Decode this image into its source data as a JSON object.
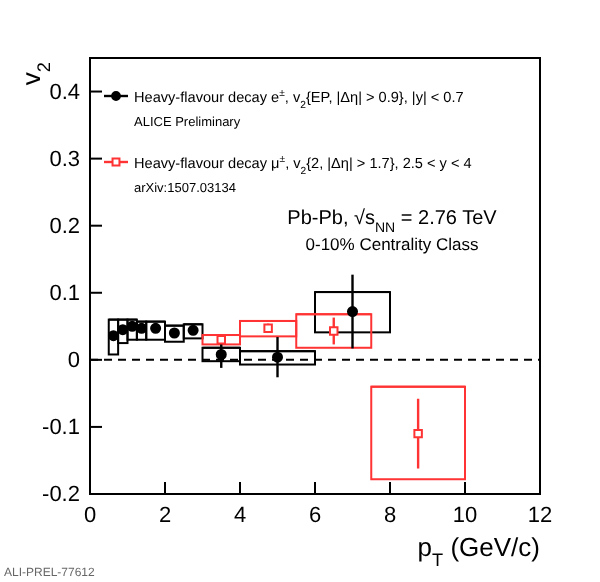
{
  "chart_data": {
    "type": "scatter",
    "ylabel": "v$_{2}$",
    "xlabel": "p$_{T}$ (GeV/c)",
    "xlim": [
      0,
      12
    ],
    "xticks": [
      0,
      2,
      4,
      6,
      8,
      10,
      12
    ],
    "ylim": [
      -0.2,
      0.45
    ],
    "yticks": [
      -0.2,
      -0.1,
      0,
      0.1,
      0.2,
      0.3,
      0.4
    ],
    "legend": "top left",
    "grid": false,
    "marker": "circle",
    "ref_lines": [
      {
        "axis": "y",
        "value": 0,
        "line_style": "dashed",
        "color": "#000000"
      }
    ],
    "annotations": [
      "ALICE Preliminary",
      "arXiv:1507.03134",
      "Pb-Pb, √s$_{NN}$ = 2.76 TeV",
      "0-10% Centrality Class",
      "ALI-PREL-77612"
    ],
    "series": [
      {
        "type": "bar",
        "color": "#000000",
        "x": [
          0.625,
          0.875,
          1.125,
          1.375,
          1.75,
          2.25,
          2.75,
          3.5,
          5,
          7
        ],
        "base": [
          0.008,
          0.025,
          0.03,
          0.03,
          0.03,
          0.027,
          0.032,
          -0.002,
          -0.007,
          0.041
        ],
        "values": [
          0.052,
          0.035,
          0.03,
          0.027,
          0.027,
          0.024,
          0.021,
          0.02,
          0.02,
          0.06
        ],
        "xerrors": [
          0.125,
          0.125,
          0.125,
          0.125,
          0.25,
          0.25,
          0.25,
          0.5,
          1,
          1
        ]
      },
      {
        "type": "bar",
        "color": "#ff3333",
        "x": [
          3.5,
          4.75,
          6.5,
          8.75
        ],
        "base": [
          0.023,
          0.035,
          0.018,
          -0.178
        ],
        "values": [
          0.014,
          0.023,
          0.05,
          0.138
        ],
        "xerrors": [
          0.5,
          0.75,
          1,
          1.25
        ]
      },
      {
        "name": "Heavy-flavour decay e$^{±}$, v$_{2}${EP, |Δη| > 0.9}, |y| < 0.7",
        "color": "#000000",
        "x": [
          0.625,
          0.875,
          1.125,
          1.375,
          1.75,
          2.25,
          2.75,
          3.5,
          5,
          7
        ],
        "values": [
          0.036,
          0.045,
          0.05,
          0.047,
          0.047,
          0.04,
          0.044,
          0.008,
          0.004,
          0.072
        ],
        "errors": [
          0.004,
          0.004,
          0.004,
          0.004,
          0.004,
          0.004,
          0.004,
          0.02,
          0.03,
          0.055
        ]
      },
      {
        "name": "Heavy-flavour decay μ$^{±}$, v$_{2}${2, |Δη| > 1.7}, 2.5 < y < 4",
        "color": "#ff3333",
        "marker": "square",
        "x": [
          3.5,
          4.75,
          6.5,
          8.75
        ],
        "values": [
          0.03,
          0.047,
          0.043,
          -0.11
        ],
        "errors": [
          0.005,
          0.007,
          0.02,
          0.052
        ]
      }
    ]
  }
}
